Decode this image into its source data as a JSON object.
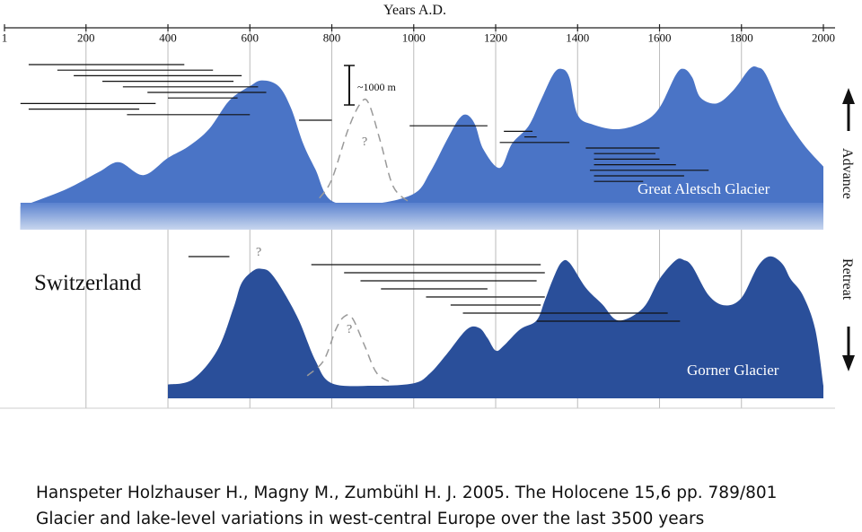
{
  "chart_data": {
    "type": "area",
    "title": "Years A.D.",
    "xlabel": "Years A.D.",
    "x_ticks": [
      1,
      200,
      400,
      600,
      800,
      1000,
      1200,
      1400,
      1600,
      1800,
      2000
    ],
    "xlim": [
      1,
      2000
    ],
    "grid": true,
    "scale_label": "~1000 m",
    "uncertain_mark": "?",
    "side_labels": {
      "top": "Advance",
      "bottom": "Retreat"
    },
    "country_label": "Switzerland",
    "colors": {
      "aletsch": "#4a74c6",
      "gorner": "#2a4f9a",
      "fade": "#c8d6ee",
      "grid": "#bbbbbb",
      "uncertain": "#9a9a9a"
    },
    "series": [
      {
        "name": "Great Aletsch Glacier",
        "x": [
          40,
          150,
          230,
          280,
          340,
          400,
          450,
          500,
          550,
          600,
          630,
          670,
          700,
          730,
          760,
          800,
          900,
          1000,
          1040,
          1080,
          1110,
          1130,
          1150,
          1170,
          1210,
          1240,
          1280,
          1310,
          1340,
          1360,
          1380,
          1400,
          1440,
          1500,
          1560,
          1600,
          1640,
          1660,
          1680,
          1700,
          1740,
          1780,
          1820,
          1840,
          1860,
          1900,
          1950,
          2000
        ],
        "y": [
          0.16,
          0.28,
          0.4,
          0.47,
          0.38,
          0.5,
          0.58,
          0.7,
          0.9,
          1.0,
          1.04,
          1.0,
          0.85,
          0.6,
          0.42,
          0.2,
          0.18,
          0.25,
          0.4,
          0.62,
          0.77,
          0.8,
          0.73,
          0.56,
          0.43,
          0.6,
          0.72,
          0.9,
          1.08,
          1.12,
          1.06,
          0.8,
          0.73,
          0.7,
          0.75,
          0.85,
          1.08,
          1.12,
          1.06,
          0.92,
          0.88,
          0.97,
          1.12,
          1.13,
          1.08,
          0.82,
          0.6,
          0.44
        ]
      },
      {
        "name": "Gorner Glacier",
        "x": [
          400,
          460,
          520,
          560,
          580,
          610,
          630,
          650,
          680,
          720,
          760,
          800,
          900,
          1000,
          1040,
          1080,
          1130,
          1160,
          1180,
          1200,
          1220,
          1260,
          1300,
          1320,
          1340,
          1360,
          1380,
          1420,
          1460,
          1500,
          1560,
          1600,
          1640,
          1660,
          1680,
          1720,
          1760,
          1800,
          1840,
          1870,
          1900,
          1920,
          1950,
          1980,
          2000
        ],
        "y": [
          0.11,
          0.15,
          0.38,
          0.72,
          0.92,
          1.02,
          1.03,
          1.0,
          0.86,
          0.62,
          0.3,
          0.12,
          0.1,
          0.12,
          0.2,
          0.35,
          0.55,
          0.56,
          0.48,
          0.38,
          0.42,
          0.55,
          0.62,
          0.78,
          0.95,
          1.08,
          1.08,
          0.88,
          0.75,
          0.62,
          0.72,
          0.95,
          1.1,
          1.1,
          1.05,
          0.82,
          0.74,
          0.8,
          1.05,
          1.13,
          1.07,
          0.95,
          0.82,
          0.55,
          0.1
        ]
      }
    ],
    "uncertain_series": [
      {
        "panel": "aletsch",
        "x": [
          770,
          800,
          840,
          870,
          890,
          920,
          950,
          990
        ],
        "y": [
          0.22,
          0.35,
          0.7,
          0.88,
          0.88,
          0.6,
          0.3,
          0.19
        ]
      },
      {
        "panel": "gorner",
        "x": [
          740,
          780,
          810,
          830,
          850,
          880,
          910,
          950
        ],
        "y": [
          0.18,
          0.3,
          0.55,
          0.65,
          0.64,
          0.42,
          0.2,
          0.12
        ]
      }
    ],
    "reference_lines": {
      "aletsch": [
        [
          60,
          440
        ],
        [
          130,
          510
        ],
        [
          170,
          580
        ],
        [
          240,
          560
        ],
        [
          290,
          620
        ],
        [
          350,
          640
        ],
        [
          400,
          570
        ],
        [
          40,
          370
        ],
        [
          60,
          330
        ],
        [
          300,
          600
        ],
        [
          720,
          800
        ],
        [
          990,
          1180
        ],
        [
          1220,
          1290
        ],
        [
          1270,
          1300
        ],
        [
          1210,
          1380
        ],
        [
          1420,
          1600
        ],
        [
          1440,
          1590
        ],
        [
          1440,
          1600
        ],
        [
          1440,
          1640
        ],
        [
          1430,
          1720
        ],
        [
          1440,
          1660
        ],
        [
          1440,
          1560
        ]
      ],
      "gorner": [
        [
          450,
          550
        ],
        [
          750,
          1310
        ],
        [
          830,
          1320
        ],
        [
          870,
          1300
        ],
        [
          920,
          1180
        ],
        [
          1030,
          1320
        ],
        [
          1090,
          1310
        ],
        [
          1120,
          1620
        ],
        [
          1300,
          1650
        ]
      ]
    }
  },
  "caption": {
    "line1": "Hanspeter Holzhauser H., Magny M., Zumbühl H. J. 2005. The Holocene 15,6 pp. 789/801",
    "line2": "Glacier and lake-level variations in west-central Europe over the last 3500 years"
  }
}
